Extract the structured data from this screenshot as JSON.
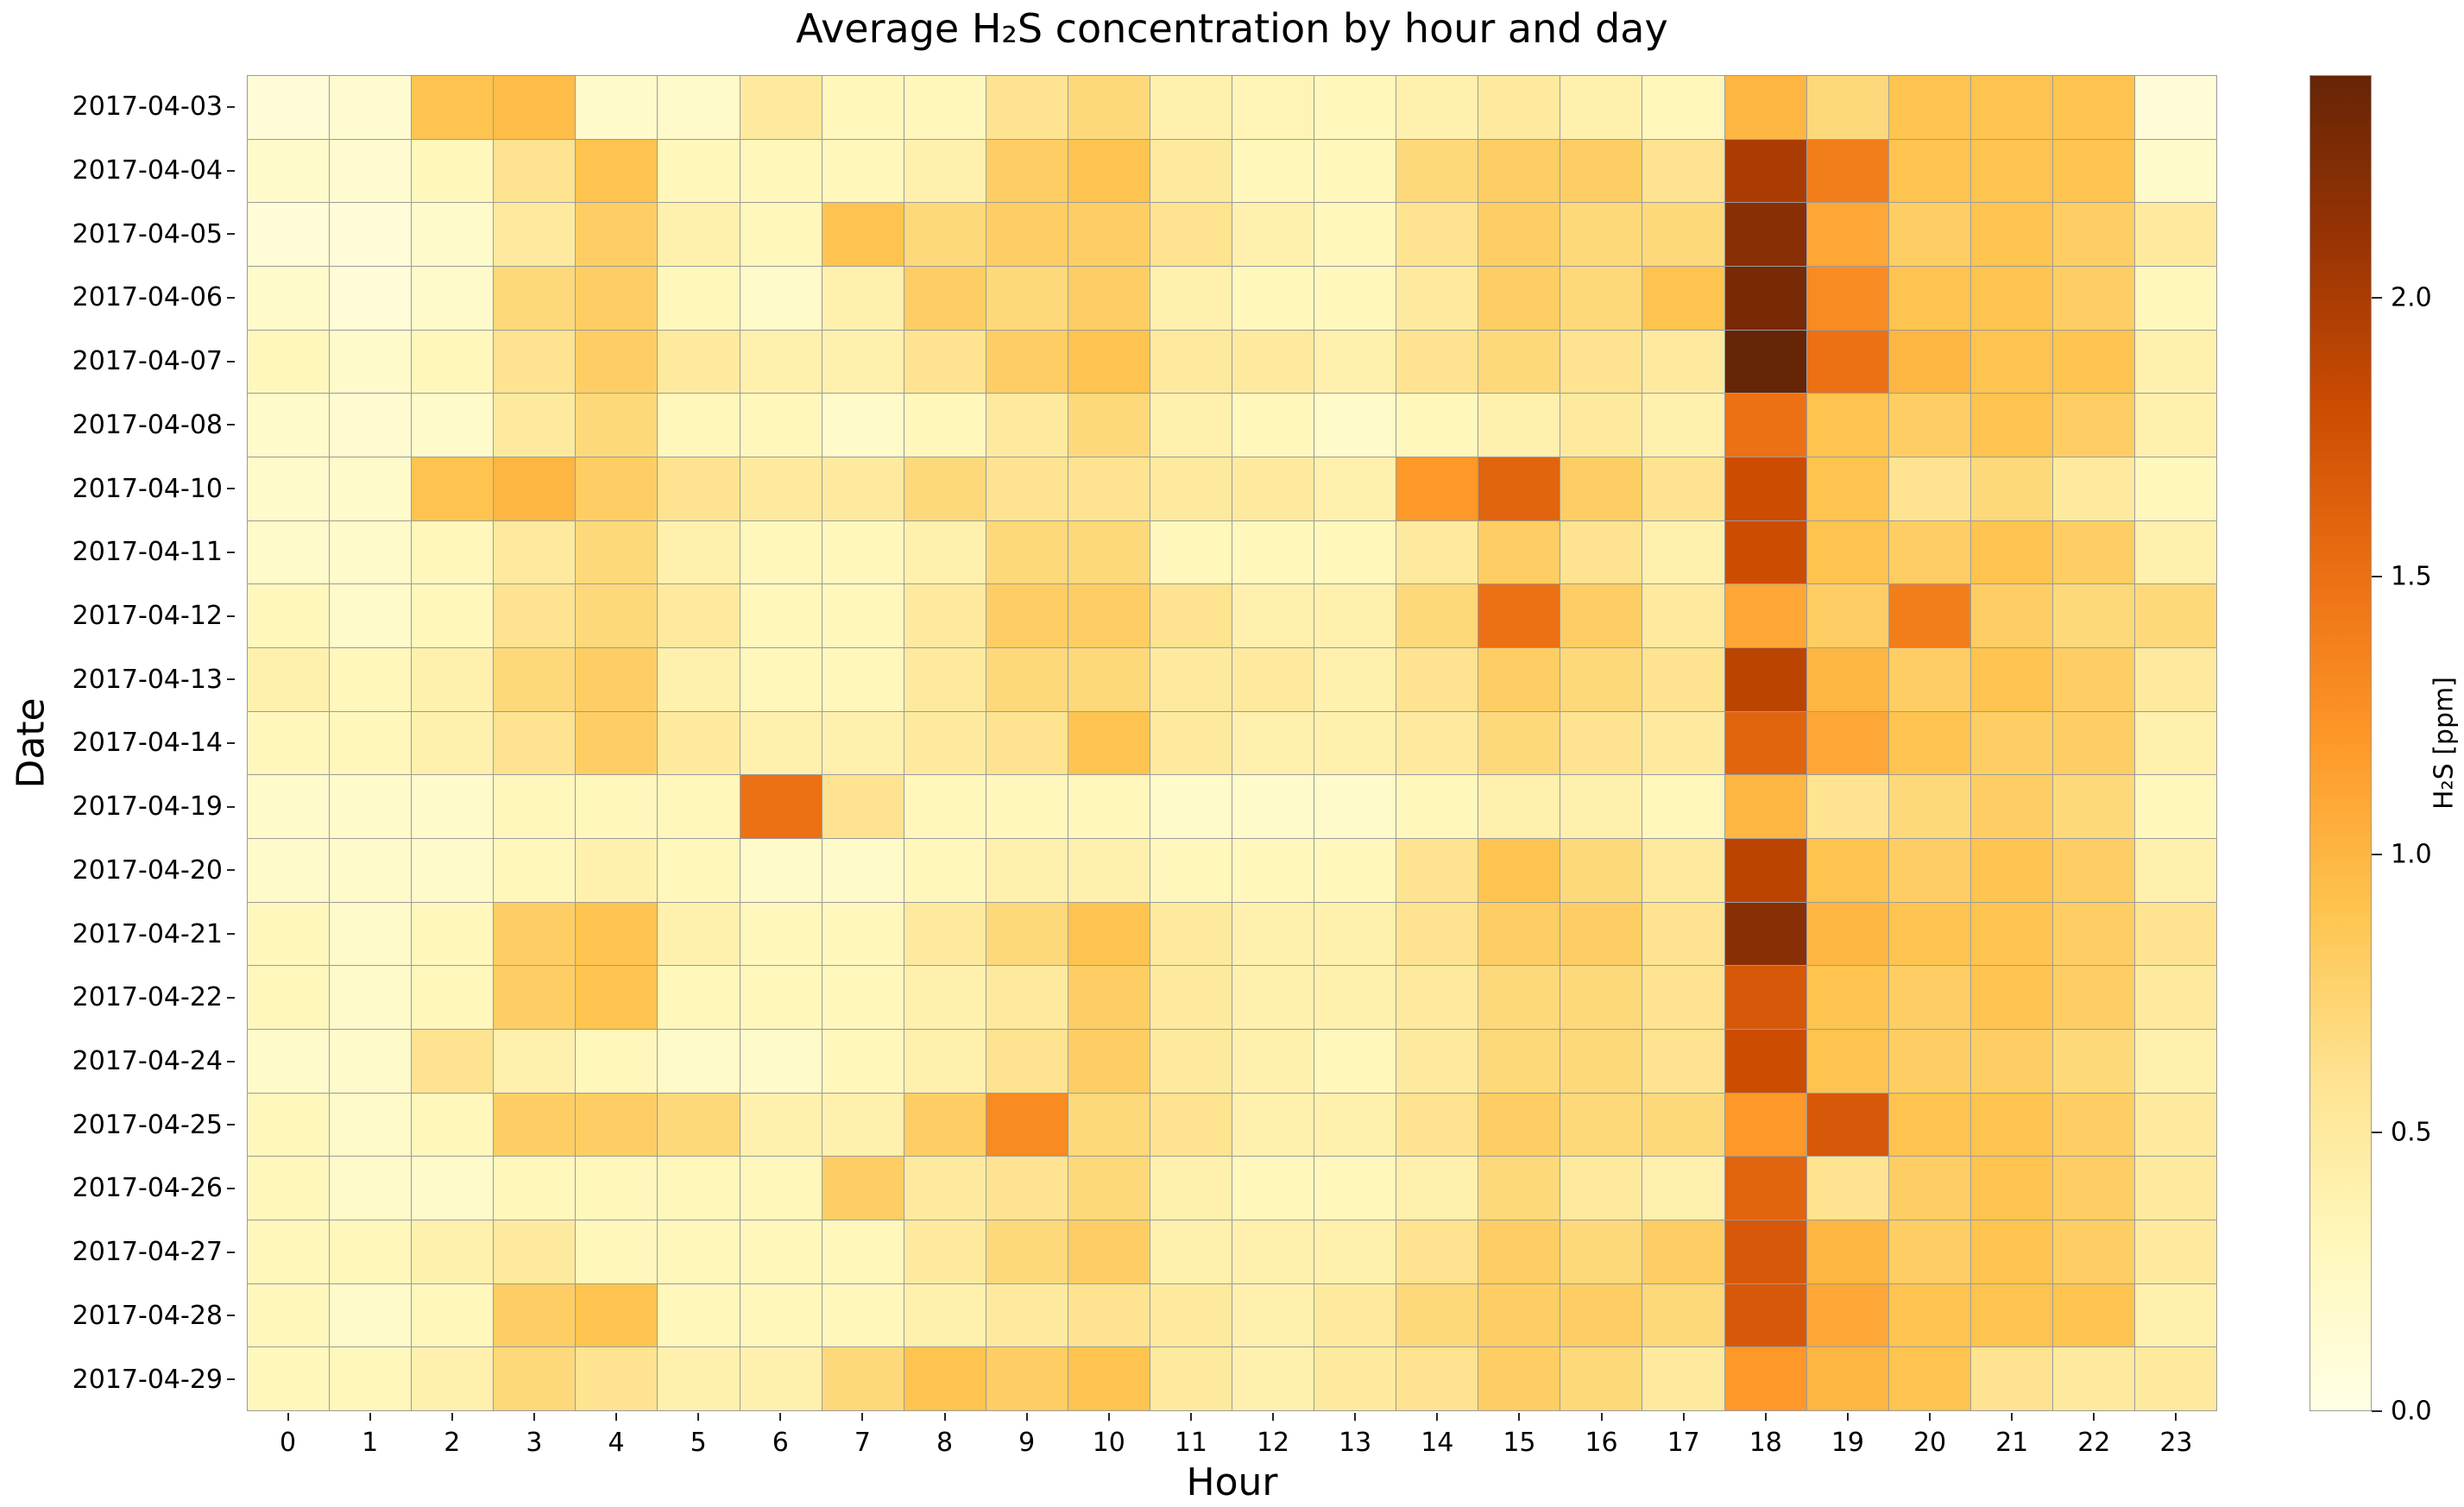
{
  "figure": {
    "title": "Average H₂S concentration by hour and day",
    "xlabel": "Hour",
    "ylabel": "Date"
  },
  "chart_data": {
    "type": "heatmap",
    "x": [
      "0",
      "1",
      "2",
      "3",
      "4",
      "5",
      "6",
      "7",
      "8",
      "9",
      "10",
      "11",
      "12",
      "13",
      "14",
      "15",
      "16",
      "17",
      "18",
      "19",
      "20",
      "21",
      "22",
      "23"
    ],
    "rows": [
      "2017-04-03",
      "2017-04-04",
      "2017-04-05",
      "2017-04-06",
      "2017-04-07",
      "2017-04-08",
      "2017-04-10",
      "2017-04-11",
      "2017-04-12",
      "2017-04-13",
      "2017-04-14",
      "2017-04-19",
      "2017-04-20",
      "2017-04-21",
      "2017-04-22",
      "2017-04-24",
      "2017-04-25",
      "2017-04-26",
      "2017-04-27",
      "2017-04-28",
      "2017-04-29"
    ],
    "values": [
      [
        0.1,
        0.15,
        0.9,
        0.95,
        0.2,
        0.2,
        0.5,
        0.3,
        0.3,
        0.6,
        0.7,
        0.4,
        0.35,
        0.3,
        0.4,
        0.5,
        0.4,
        0.3,
        1.0,
        0.7,
        0.9,
        0.9,
        0.9,
        0.1
      ],
      [
        0.2,
        0.15,
        0.3,
        0.6,
        0.9,
        0.3,
        0.3,
        0.3,
        0.4,
        0.8,
        0.9,
        0.5,
        0.3,
        0.3,
        0.7,
        0.8,
        0.8,
        0.6,
        2.0,
        1.4,
        0.9,
        0.9,
        0.9,
        0.2
      ],
      [
        0.1,
        0.1,
        0.2,
        0.5,
        0.8,
        0.4,
        0.3,
        0.9,
        0.7,
        0.8,
        0.8,
        0.6,
        0.4,
        0.3,
        0.6,
        0.8,
        0.7,
        0.7,
        2.2,
        1.1,
        0.8,
        0.9,
        0.8,
        0.5
      ],
      [
        0.2,
        0.1,
        0.2,
        0.7,
        0.8,
        0.3,
        0.2,
        0.4,
        0.8,
        0.7,
        0.8,
        0.4,
        0.3,
        0.3,
        0.5,
        0.8,
        0.7,
        0.9,
        2.3,
        1.3,
        0.9,
        0.9,
        0.8,
        0.3
      ],
      [
        0.3,
        0.2,
        0.3,
        0.6,
        0.8,
        0.5,
        0.4,
        0.4,
        0.6,
        0.8,
        0.9,
        0.5,
        0.5,
        0.4,
        0.6,
        0.7,
        0.6,
        0.5,
        2.4,
        1.5,
        1.0,
        0.9,
        0.9,
        0.4
      ],
      [
        0.2,
        0.15,
        0.2,
        0.5,
        0.7,
        0.3,
        0.3,
        0.2,
        0.3,
        0.5,
        0.7,
        0.4,
        0.3,
        0.2,
        0.3,
        0.4,
        0.5,
        0.4,
        1.5,
        0.9,
        0.8,
        0.9,
        0.8,
        0.4
      ],
      [
        0.2,
        0.2,
        0.9,
        1.0,
        0.8,
        0.6,
        0.5,
        0.5,
        0.7,
        0.6,
        0.6,
        0.5,
        0.5,
        0.4,
        1.2,
        1.6,
        0.8,
        0.6,
        1.8,
        0.9,
        0.6,
        0.7,
        0.5,
        0.3
      ],
      [
        0.2,
        0.2,
        0.3,
        0.5,
        0.7,
        0.4,
        0.3,
        0.3,
        0.4,
        0.7,
        0.7,
        0.3,
        0.3,
        0.3,
        0.5,
        0.8,
        0.6,
        0.4,
        1.8,
        0.9,
        0.8,
        0.9,
        0.8,
        0.4
      ],
      [
        0.3,
        0.2,
        0.3,
        0.6,
        0.7,
        0.5,
        0.3,
        0.3,
        0.5,
        0.8,
        0.8,
        0.6,
        0.4,
        0.4,
        0.7,
        1.5,
        0.8,
        0.5,
        1.1,
        0.8,
        1.4,
        0.8,
        0.7,
        0.7
      ],
      [
        0.4,
        0.3,
        0.4,
        0.7,
        0.8,
        0.4,
        0.3,
        0.3,
        0.5,
        0.7,
        0.7,
        0.5,
        0.5,
        0.4,
        0.6,
        0.8,
        0.7,
        0.6,
        1.9,
        1.0,
        0.8,
        0.9,
        0.8,
        0.5
      ],
      [
        0.3,
        0.3,
        0.4,
        0.6,
        0.8,
        0.5,
        0.4,
        0.4,
        0.5,
        0.6,
        0.9,
        0.5,
        0.4,
        0.4,
        0.5,
        0.7,
        0.6,
        0.5,
        1.6,
        1.1,
        0.9,
        0.8,
        0.8,
        0.4
      ],
      [
        0.2,
        0.2,
        0.2,
        0.3,
        0.3,
        0.3,
        1.5,
        0.6,
        0.3,
        0.3,
        0.3,
        0.2,
        0.2,
        0.2,
        0.3,
        0.4,
        0.4,
        0.3,
        1.0,
        0.6,
        0.7,
        0.8,
        0.7,
        0.3
      ],
      [
        0.2,
        0.2,
        0.2,
        0.3,
        0.4,
        0.3,
        0.2,
        0.2,
        0.3,
        0.4,
        0.4,
        0.3,
        0.3,
        0.3,
        0.6,
        0.9,
        0.7,
        0.5,
        1.9,
        0.9,
        0.8,
        0.9,
        0.8,
        0.4
      ],
      [
        0.3,
        0.2,
        0.3,
        0.8,
        0.9,
        0.4,
        0.3,
        0.3,
        0.5,
        0.7,
        0.9,
        0.5,
        0.4,
        0.4,
        0.6,
        0.8,
        0.8,
        0.6,
        2.2,
        1.0,
        0.9,
        0.9,
        0.8,
        0.6
      ],
      [
        0.3,
        0.2,
        0.3,
        0.8,
        0.9,
        0.3,
        0.3,
        0.3,
        0.4,
        0.5,
        0.8,
        0.5,
        0.4,
        0.4,
        0.5,
        0.7,
        0.7,
        0.6,
        1.7,
        0.9,
        0.8,
        0.9,
        0.8,
        0.5
      ],
      [
        0.2,
        0.2,
        0.6,
        0.4,
        0.3,
        0.2,
        0.2,
        0.3,
        0.4,
        0.6,
        0.8,
        0.5,
        0.4,
        0.3,
        0.5,
        0.7,
        0.7,
        0.6,
        1.8,
        0.9,
        0.8,
        0.8,
        0.7,
        0.4
      ],
      [
        0.3,
        0.2,
        0.3,
        0.8,
        0.8,
        0.7,
        0.4,
        0.4,
        0.8,
        1.3,
        0.7,
        0.6,
        0.4,
        0.4,
        0.6,
        0.8,
        0.7,
        0.7,
        1.2,
        1.7,
        0.9,
        0.9,
        0.8,
        0.5
      ],
      [
        0.3,
        0.2,
        0.2,
        0.3,
        0.3,
        0.3,
        0.3,
        0.8,
        0.5,
        0.6,
        0.7,
        0.4,
        0.3,
        0.3,
        0.4,
        0.7,
        0.5,
        0.4,
        1.6,
        0.6,
        0.8,
        0.9,
        0.8,
        0.5
      ],
      [
        0.3,
        0.3,
        0.4,
        0.5,
        0.3,
        0.3,
        0.3,
        0.3,
        0.5,
        0.7,
        0.8,
        0.4,
        0.4,
        0.4,
        0.6,
        0.8,
        0.7,
        0.8,
        1.7,
        1.0,
        0.8,
        0.9,
        0.8,
        0.5
      ],
      [
        0.3,
        0.2,
        0.3,
        0.8,
        0.9,
        0.3,
        0.3,
        0.3,
        0.4,
        0.5,
        0.6,
        0.5,
        0.4,
        0.5,
        0.7,
        0.8,
        0.8,
        0.7,
        1.7,
        1.1,
        0.9,
        0.9,
        0.9,
        0.4
      ],
      [
        0.3,
        0.3,
        0.4,
        0.7,
        0.6,
        0.4,
        0.4,
        0.7,
        0.9,
        0.8,
        0.9,
        0.5,
        0.4,
        0.5,
        0.6,
        0.8,
        0.7,
        0.5,
        1.2,
        1.0,
        0.9,
        0.6,
        0.5,
        0.5
      ]
    ],
    "vmin": 0.0,
    "vmax": 2.4,
    "colorbar": {
      "label": "H₂S [ppm]",
      "ticks": [
        {
          "value": 0.0,
          "label": "0.0"
        },
        {
          "value": 0.5,
          "label": "0.5"
        },
        {
          "value": 1.0,
          "label": "1.0"
        },
        {
          "value": 1.5,
          "label": "1.5"
        },
        {
          "value": 2.0,
          "label": "2.0"
        }
      ]
    },
    "colormap": {
      "name": "YlOrBr",
      "stops": [
        {
          "t": 0.0,
          "color": "#ffffe5"
        },
        {
          "t": 0.125,
          "color": "#fff7bc"
        },
        {
          "t": 0.25,
          "color": "#fee391"
        },
        {
          "t": 0.375,
          "color": "#fec44f"
        },
        {
          "t": 0.5,
          "color": "#fe9929"
        },
        {
          "t": 0.625,
          "color": "#ec7014"
        },
        {
          "t": 0.75,
          "color": "#cc4c02"
        },
        {
          "t": 0.875,
          "color": "#993404"
        },
        {
          "t": 1.0,
          "color": "#662506"
        }
      ]
    },
    "grid_color": "#9b9b9b"
  }
}
